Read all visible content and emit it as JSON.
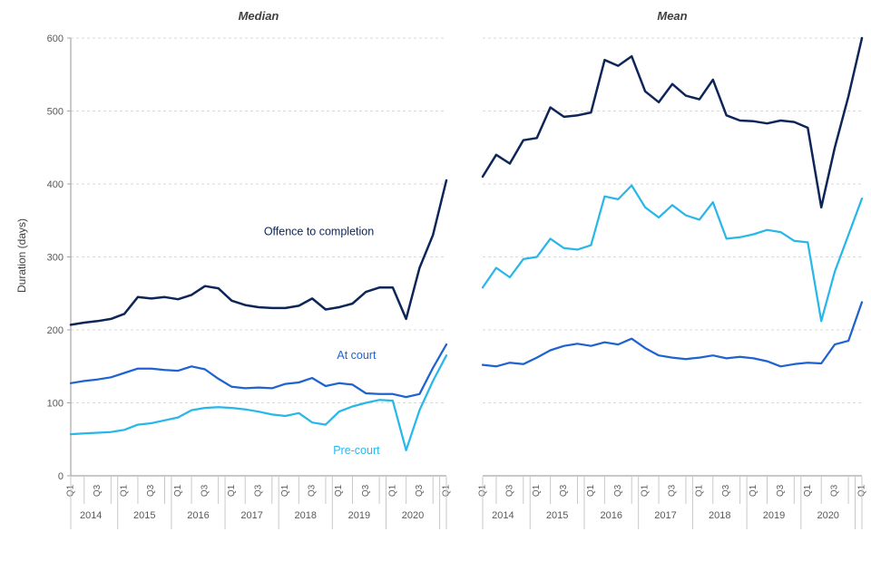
{
  "page": {
    "background": "#ffffff"
  },
  "colors": {
    "offence": "#0d2557",
    "at_court": "#1e63d0",
    "pre_court": "#29b7ea",
    "grid": "#d9d9d9",
    "axis": "#a6a6a6",
    "minor": "#c8c8c8",
    "tick_label": "#595959",
    "title": "#404040"
  },
  "y_axis": {
    "title": "Duration (days)",
    "max": 600,
    "tick_values": [
      0,
      100,
      200,
      300,
      400,
      500,
      600
    ]
  },
  "x_axis": {
    "quarter_labels": [
      "Q1",
      "",
      "Q3",
      "",
      "Q1",
      "",
      "Q3",
      "",
      "Q1",
      "",
      "Q3",
      "",
      "Q1",
      "",
      "Q3",
      "",
      "Q1",
      "",
      "Q3",
      "",
      "Q1",
      "",
      "Q3",
      "",
      "Q1",
      "",
      "Q3",
      "",
      "Q1"
    ],
    "years": [
      {
        "label": "2014",
        "count": 4
      },
      {
        "label": "2015",
        "count": 4
      },
      {
        "label": "2016",
        "count": 4
      },
      {
        "label": "2017",
        "count": 4
      },
      {
        "label": "2018",
        "count": 4
      },
      {
        "label": "2019",
        "count": 4
      },
      {
        "label": "2020",
        "count": 4
      },
      {
        "label": "",
        "count": 1
      }
    ]
  },
  "chart_data": [
    {
      "type": "line",
      "title": "Median",
      "ylim": [
        0,
        600
      ],
      "grid": "dashed-horizontal",
      "legend": "inline-annotations",
      "series": [
        {
          "name": "Offence to completion",
          "color_key": "offence",
          "values": [
            207,
            210,
            212,
            215,
            222,
            245,
            243,
            245,
            242,
            248,
            260,
            257,
            240,
            234,
            231,
            230,
            230,
            233,
            243,
            228,
            231,
            236,
            252,
            258,
            258,
            215,
            285,
            330,
            405
          ]
        },
        {
          "name": "At court",
          "color_key": "at_court",
          "values": [
            127,
            130,
            132,
            135,
            141,
            147,
            147,
            145,
            144,
            150,
            146,
            133,
            122,
            120,
            121,
            120,
            126,
            128,
            134,
            123,
            127,
            125,
            113,
            112,
            112,
            108,
            112,
            148,
            180
          ]
        },
        {
          "name": "Pre-court",
          "color_key": "pre_court",
          "values": [
            57,
            58,
            59,
            60,
            63,
            70,
            72,
            76,
            80,
            90,
            93,
            94,
            93,
            91,
            88,
            84,
            82,
            86,
            73,
            70,
            88,
            95,
            100,
            104,
            103,
            35,
            90,
            130,
            165
          ]
        }
      ],
      "annotations": [
        {
          "text": "Offence to completion",
          "xi": 18.5,
          "v": 330,
          "color_key": "offence"
        },
        {
          "text": "At court",
          "xi": 21.3,
          "v": 160,
          "color_key": "at_court"
        },
        {
          "text": "Pre-court",
          "xi": 21.3,
          "v": 30,
          "color_key": "pre_court"
        }
      ]
    },
    {
      "type": "line",
      "title": "Mean",
      "ylim": [
        0,
        600
      ],
      "grid": "dashed-horizontal",
      "legend": "none",
      "series": [
        {
          "name": "Offence to completion",
          "color_key": "offence",
          "values": [
            410,
            440,
            428,
            460,
            463,
            505,
            492,
            494,
            498,
            570,
            562,
            575,
            527,
            512,
            537,
            521,
            516,
            543,
            494,
            487,
            486,
            483,
            487,
            485,
            477,
            368,
            450,
            520,
            600
          ]
        },
        {
          "name": "At court",
          "color_key": "at_court",
          "values": [
            152,
            150,
            155,
            153,
            162,
            172,
            178,
            181,
            178,
            183,
            180,
            188,
            175,
            165,
            162,
            160,
            162,
            165,
            161,
            163,
            161,
            157,
            150,
            153,
            155,
            154,
            180,
            185,
            238
          ]
        },
        {
          "name": "Pre-court",
          "color_key": "pre_court",
          "values": [
            258,
            285,
            272,
            297,
            300,
            325,
            312,
            310,
            316,
            383,
            379,
            398,
            368,
            354,
            371,
            357,
            351,
            375,
            325,
            327,
            331,
            337,
            334,
            322,
            320,
            212,
            280,
            330,
            380
          ]
        }
      ],
      "annotations": []
    }
  ]
}
